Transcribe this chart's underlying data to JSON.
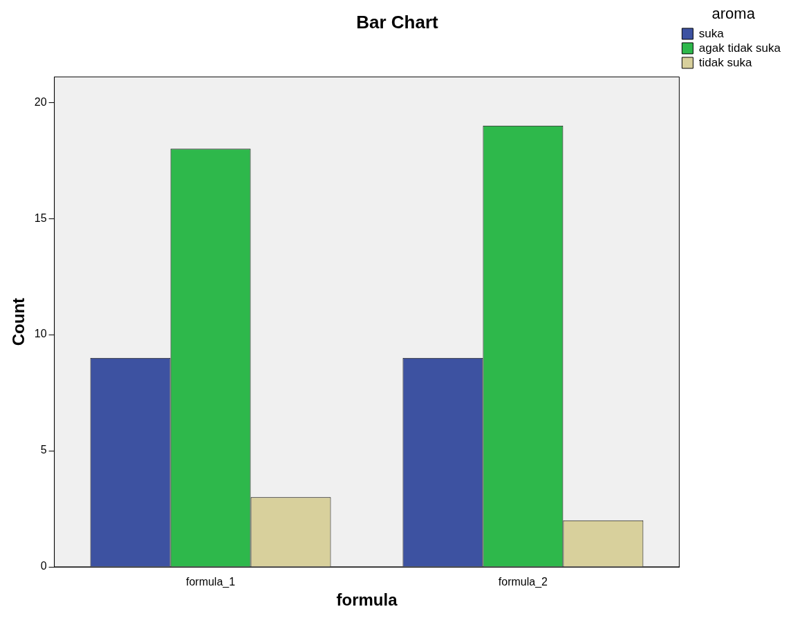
{
  "chart_data": {
    "type": "bar",
    "title": "Bar Chart",
    "xlabel": "formula",
    "ylabel": "Count",
    "legend_title": "aroma",
    "categories": [
      "formula_1",
      "formula_2"
    ],
    "series": [
      {
        "name": "suka",
        "color": "#3d52a1",
        "values": [
          9,
          9
        ]
      },
      {
        "name": "agak tidak suka",
        "color": "#2eb84b",
        "values": [
          18,
          19
        ]
      },
      {
        "name": "tidak suka",
        "color": "#d8d09c",
        "values": [
          3,
          2
        ]
      }
    ],
    "ylim": [
      0,
      21.1
    ],
    "yticks": [
      0,
      5,
      10,
      15,
      20
    ],
    "grid": false,
    "legend": "right"
  }
}
